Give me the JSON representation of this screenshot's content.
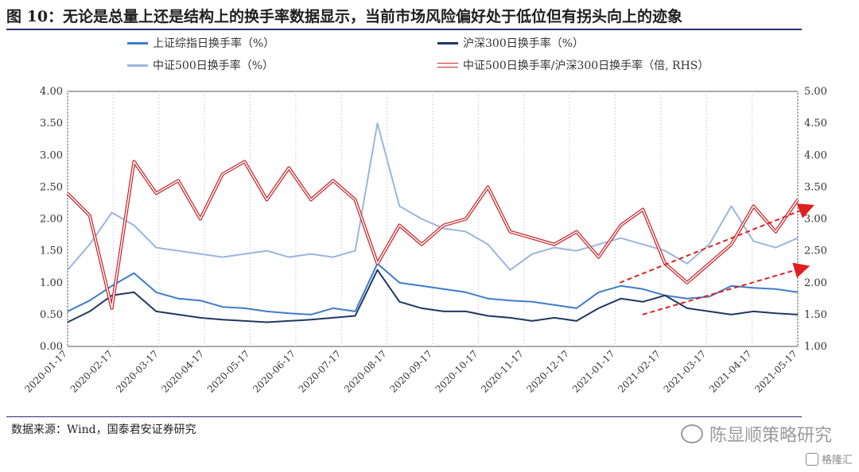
{
  "title": "图 10：无论是总量上还是结构上的换手率数据显示，当前市场风险偏好处于低位但有拐头向上的迹象",
  "source": "数据来源：Wind，国泰君安证券研究",
  "watermark": "陈显顺策略研究",
  "watermark_sub": "格隆汇",
  "colors": {
    "sh": "#3d7cc9",
    "hs300": "#1f3864",
    "zz500": "#9ab5e0",
    "ratio": "#c9252b",
    "arrow": "#e02020"
  },
  "chart_data": {
    "type": "line",
    "title": "",
    "x_ticks": [
      "2020-01-17",
      "2020-02-17",
      "2020-03-17",
      "2020-04-17",
      "2020-05-17",
      "2020-06-17",
      "2020-07-17",
      "2020-08-17",
      "2020-09-17",
      "2020-10-17",
      "2020-11-17",
      "2020-12-17",
      "2021-01-17",
      "2021-02-17",
      "2021-03-17",
      "2021-04-17",
      "2021-05-17"
    ],
    "y_left": {
      "min": 0,
      "max": 4,
      "ticks": [
        "0.00",
        "0.50",
        "1.00",
        "1.50",
        "2.00",
        "2.50",
        "3.00",
        "3.50",
        "4.00"
      ]
    },
    "y_right": {
      "min": 1,
      "max": 5,
      "ticks": [
        "1.00",
        "1.50",
        "2.00",
        "2.50",
        "3.00",
        "3.50",
        "4.00",
        "4.50",
        "5.00"
      ]
    },
    "legend_placement": "top",
    "series": [
      {
        "name": "上证综指日换手率（%）",
        "axis": "left",
        "color": "#3d7cc9",
        "values": [
          0.55,
          0.72,
          0.95,
          1.15,
          0.85,
          0.75,
          0.72,
          0.62,
          0.6,
          0.55,
          0.52,
          0.5,
          0.6,
          0.55,
          1.3,
          1.0,
          0.95,
          0.9,
          0.85,
          0.75,
          0.72,
          0.7,
          0.65,
          0.6,
          0.85,
          0.95,
          0.9,
          0.8,
          0.75,
          0.78,
          0.95,
          0.92,
          0.9,
          0.85
        ]
      },
      {
        "name": "沪深300日换手率（%）",
        "axis": "left",
        "color": "#1f3864",
        "values": [
          0.38,
          0.55,
          0.8,
          0.85,
          0.55,
          0.5,
          0.45,
          0.42,
          0.4,
          0.38,
          0.4,
          0.42,
          0.45,
          0.48,
          1.2,
          0.7,
          0.6,
          0.55,
          0.55,
          0.48,
          0.45,
          0.4,
          0.45,
          0.4,
          0.6,
          0.75,
          0.7,
          0.8,
          0.6,
          0.55,
          0.5,
          0.55,
          0.52,
          0.5
        ]
      },
      {
        "name": "中证500日换手率（%）",
        "axis": "left",
        "color": "#9ab5e0",
        "values": [
          1.2,
          1.6,
          2.1,
          1.9,
          1.55,
          1.5,
          1.45,
          1.4,
          1.45,
          1.5,
          1.4,
          1.45,
          1.4,
          1.5,
          3.5,
          2.2,
          2.0,
          1.85,
          1.8,
          1.6,
          1.2,
          1.45,
          1.55,
          1.5,
          1.6,
          1.7,
          1.6,
          1.5,
          1.3,
          1.6,
          2.2,
          1.65,
          1.55,
          1.7
        ]
      },
      {
        "name": "中证500日换手率/沪深300日换手率（倍, RHS）",
        "axis": "right",
        "color": "#c9252b",
        "values": [
          3.4,
          3.05,
          1.6,
          3.9,
          3.4,
          3.6,
          3.0,
          3.7,
          3.9,
          3.3,
          3.8,
          3.3,
          3.6,
          3.3,
          2.3,
          2.9,
          2.6,
          2.9,
          3.0,
          3.5,
          2.8,
          2.7,
          2.6,
          2.8,
          2.4,
          2.9,
          3.15,
          2.3,
          2.0,
          2.3,
          2.6,
          3.2,
          2.8,
          3.3
        ]
      }
    ],
    "annotations": [
      "dashed trend arrows indicating upward turn"
    ]
  },
  "trend_arrows": [
    {
      "x0": 12.1,
      "y0": 2.0,
      "x1": 16.3,
      "y1": 3.2
    },
    {
      "x0": 12.6,
      "y0": 1.5,
      "x1": 16.2,
      "y1": 2.25
    }
  ]
}
